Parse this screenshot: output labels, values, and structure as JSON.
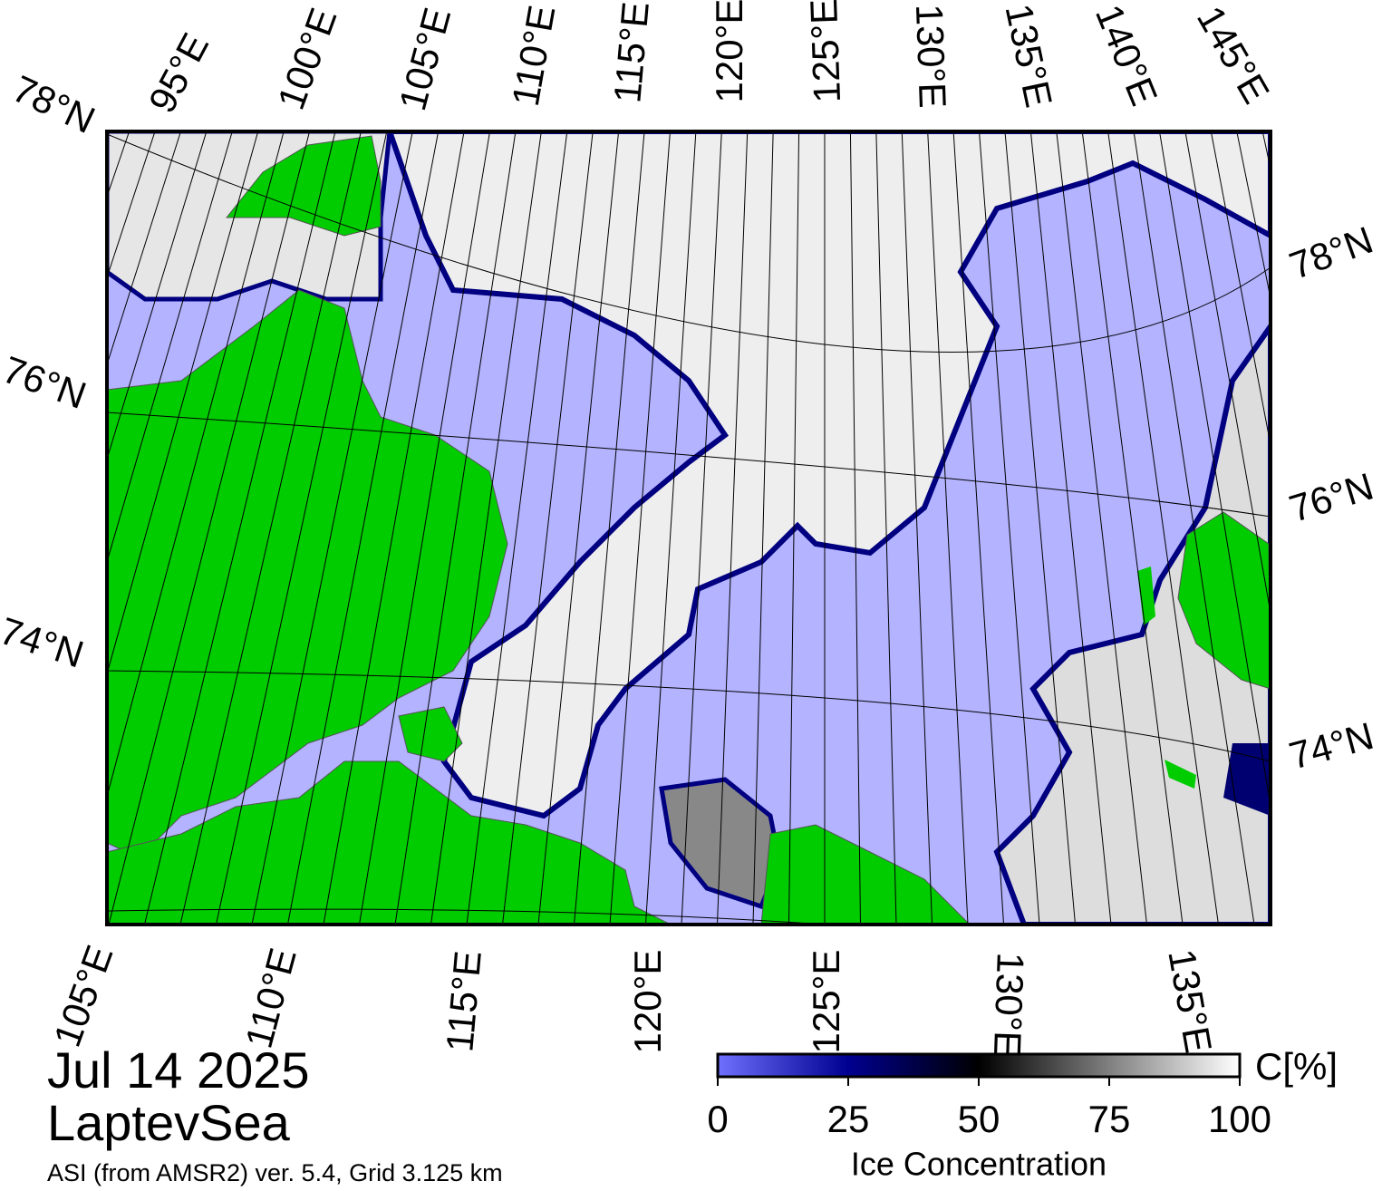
{
  "map": {
    "date": "Jul 14 2025",
    "region": "LaptevSea",
    "source": "ASI (from AMSR2) ver. 5.4,  Grid 3.125 km",
    "top_lon_labels": [
      "95°E",
      "100°E",
      "105°E",
      "110°E",
      "115°E",
      "120°E",
      "125°E",
      "130°E",
      "135°E",
      "140°E",
      "145°E"
    ],
    "left_lat_labels": [
      "78°N",
      "76°N",
      "74°N"
    ],
    "right_lat_labels": [
      "78°N",
      "76°N",
      "74°N"
    ],
    "bottom_lon_labels": [
      "105°E",
      "110°E",
      "115°E",
      "120°E",
      "125°E",
      "130°E",
      "135°E"
    ]
  },
  "colorbar": {
    "unit": "C[%]",
    "label": "Ice Concentration",
    "range": [
      0,
      100
    ],
    "ticks": [
      0,
      25,
      50,
      75,
      100
    ]
  }
}
